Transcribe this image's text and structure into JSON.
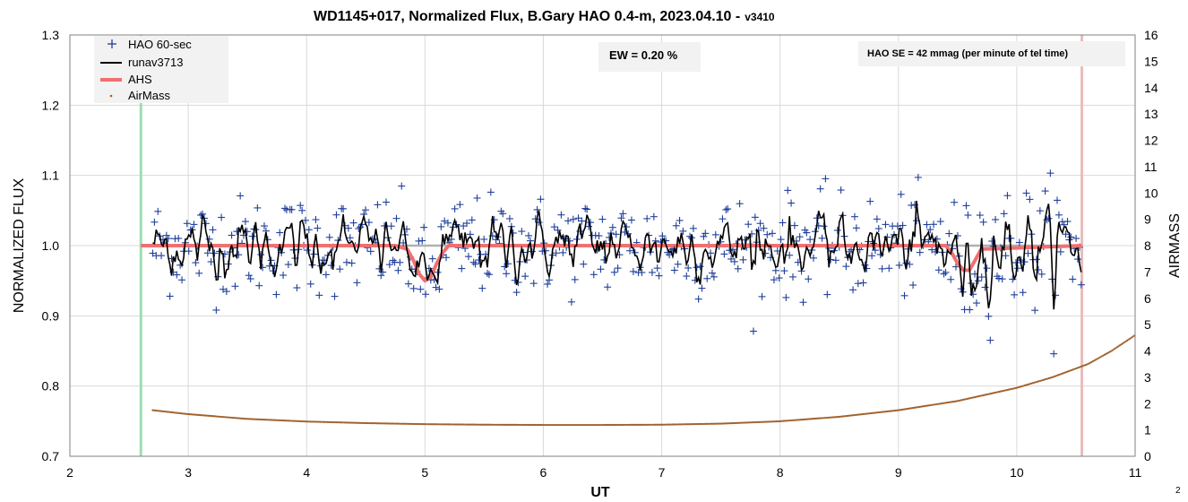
{
  "chart_data": {
    "type": "scatter",
    "title": "WD1145+017, Normalized Flux, B.Gary HAO 0.4-m, 2023.04.10 -",
    "title_version": "v3410",
    "xlabel": "UT",
    "ylabel": "NORMALIZED FLUX",
    "y2label": "AIRMASS",
    "xlim": [
      2,
      11
    ],
    "ylim": [
      0.7,
      1.3
    ],
    "y2lim": [
      0,
      16
    ],
    "x_ticks": [
      "2",
      "3",
      "4",
      "5",
      "6",
      "7",
      "8",
      "9",
      "10",
      "11"
    ],
    "y_ticks": [
      "0.7",
      "0.8",
      "0.9",
      "1.0",
      "1.1",
      "1.2",
      "1.3"
    ],
    "y2_ticks": [
      "0",
      "1",
      "2",
      "3",
      "4",
      "5",
      "6",
      "7",
      "8",
      "9",
      "10",
      "11",
      "12",
      "13",
      "14",
      "15",
      "16"
    ],
    "grid": true,
    "legend_position": "top-left",
    "annotations": {
      "ew": "EW = 0.20 %",
      "se": "HAO SE =  42 mmag (per minute of tel time)"
    },
    "corner_label": "2",
    "series": [
      {
        "name": "HAO 60-sec",
        "kind": "scatter-plus",
        "color": "#1f3f9a"
      },
      {
        "name": "runav3713",
        "kind": "line",
        "color": "#000000"
      },
      {
        "name": "AHS",
        "kind": "thick-line",
        "color": "#f07070",
        "x": [
          2.6,
          4.75,
          4.85,
          4.9,
          4.95,
          5.0,
          5.05,
          5.1,
          5.15,
          5.2,
          9.4,
          9.45,
          9.5,
          9.55,
          9.6,
          9.65,
          9.7,
          10.55
        ],
        "y": [
          1.0,
          1.0,
          0.995,
          0.98,
          0.96,
          0.95,
          0.955,
          0.975,
          0.99,
          1.0,
          1.0,
          0.99,
          0.975,
          0.965,
          0.965,
          0.98,
          0.995,
          1.0
        ]
      },
      {
        "name": "AirMass",
        "kind": "dots",
        "color": "#a0622d",
        "x": [
          2.7,
          3.0,
          3.5,
          4.0,
          4.5,
          5.0,
          5.5,
          6.0,
          6.5,
          7.0,
          7.5,
          8.0,
          8.5,
          9.0,
          9.5,
          10.0,
          10.3,
          10.6,
          10.8,
          11.0
        ],
        "y": [
          1.75,
          1.6,
          1.42,
          1.32,
          1.26,
          1.22,
          1.2,
          1.19,
          1.19,
          1.2,
          1.24,
          1.33,
          1.5,
          1.75,
          2.1,
          2.6,
          3.0,
          3.5,
          4.0,
          4.6
        ]
      }
    ],
    "reference_line": {
      "y": 1.0,
      "x": [
        2.6,
        10.55
      ],
      "color": "#b0b0b0"
    },
    "vertical_markers": [
      {
        "x": 2.6,
        "color": "#9fdcb4"
      },
      {
        "x": 10.55,
        "color": "#e8bcbc"
      }
    ]
  }
}
